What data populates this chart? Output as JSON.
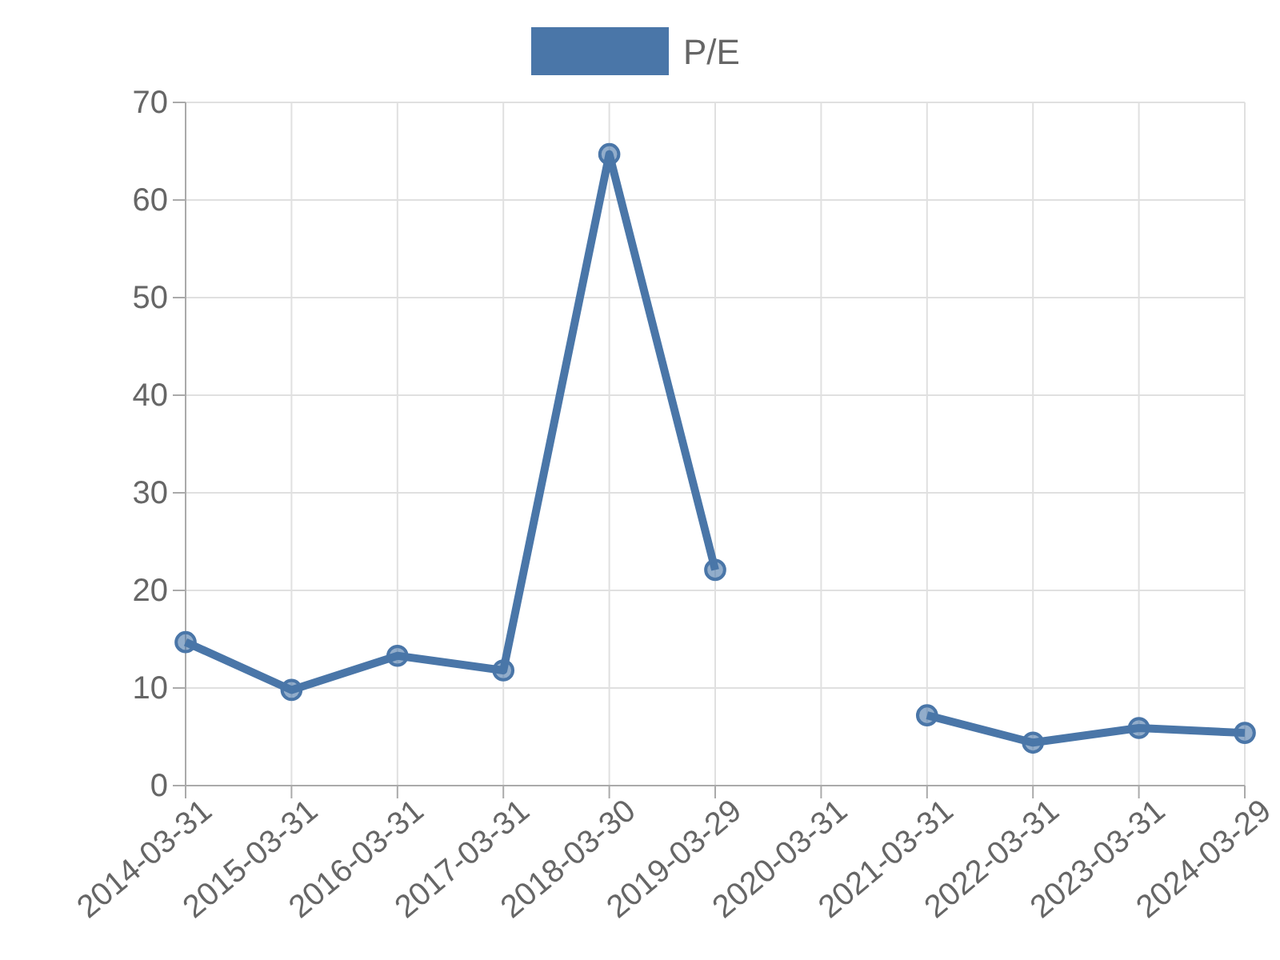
{
  "chart_data": {
    "type": "line",
    "categories": [
      "2014-03-31",
      "2015-03-31",
      "2016-03-31",
      "2017-03-31",
      "2018-03-30",
      "2019-03-29",
      "2020-03-31",
      "2021-03-31",
      "2022-03-31",
      "2023-03-31",
      "2024-03-29"
    ],
    "series": [
      {
        "name": "P/E",
        "color": "#4a76a8",
        "values": [
          14.7,
          9.8,
          13.3,
          11.8,
          64.7,
          22.1,
          null,
          7.2,
          4.4,
          5.9,
          5.4
        ]
      }
    ],
    "ylim": [
      0,
      70
    ],
    "yticks": [
      0,
      10,
      20,
      30,
      40,
      50,
      60,
      70
    ],
    "grid": true,
    "legend": "top",
    "marker": "circle",
    "line_style": "solid"
  }
}
